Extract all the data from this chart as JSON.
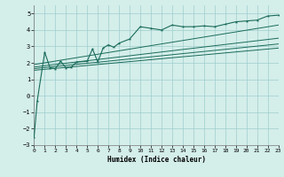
{
  "xlabel": "Humidex (Indice chaleur)",
  "xlim": [
    0,
    23
  ],
  "ylim": [
    -3,
    5.5
  ],
  "yticks": [
    -3,
    -2,
    -1,
    0,
    1,
    2,
    3,
    4,
    5
  ],
  "xticks": [
    0,
    1,
    2,
    3,
    4,
    5,
    6,
    7,
    8,
    9,
    10,
    11,
    12,
    13,
    14,
    15,
    16,
    17,
    18,
    19,
    20,
    21,
    22,
    23
  ],
  "bg_color": "#d4eeea",
  "grid_color": "#9ecece",
  "line_color": "#1a6b5a",
  "series": [
    [
      0,
      -2.5
    ],
    [
      0.3,
      -0.3
    ],
    [
      1,
      2.65
    ],
    [
      1.5,
      1.7
    ],
    [
      2,
      1.65
    ],
    [
      2.5,
      2.1
    ],
    [
      3,
      1.7
    ],
    [
      3.5,
      1.75
    ],
    [
      4,
      2.05
    ],
    [
      5,
      2.1
    ],
    [
      5.5,
      2.85
    ],
    [
      6,
      2.05
    ],
    [
      6.5,
      2.9
    ],
    [
      7,
      3.1
    ],
    [
      7.5,
      2.95
    ],
    [
      8,
      3.2
    ],
    [
      9,
      3.45
    ],
    [
      10,
      4.2
    ],
    [
      11,
      4.1
    ],
    [
      12,
      4.0
    ],
    [
      13,
      4.3
    ],
    [
      14,
      4.2
    ],
    [
      15,
      4.2
    ],
    [
      16,
      4.25
    ],
    [
      17,
      4.2
    ],
    [
      18,
      4.35
    ],
    [
      19,
      4.5
    ],
    [
      20,
      4.55
    ],
    [
      21,
      4.6
    ],
    [
      22,
      4.85
    ],
    [
      23,
      4.9
    ]
  ],
  "line1": [
    [
      0,
      1.55
    ],
    [
      23,
      2.9
    ]
  ],
  "line2": [
    [
      0,
      1.65
    ],
    [
      23,
      3.15
    ]
  ],
  "line3": [
    [
      0,
      1.75
    ],
    [
      23,
      3.5
    ]
  ],
  "line4": [
    [
      0,
      1.9
    ],
    [
      23,
      4.3
    ]
  ]
}
